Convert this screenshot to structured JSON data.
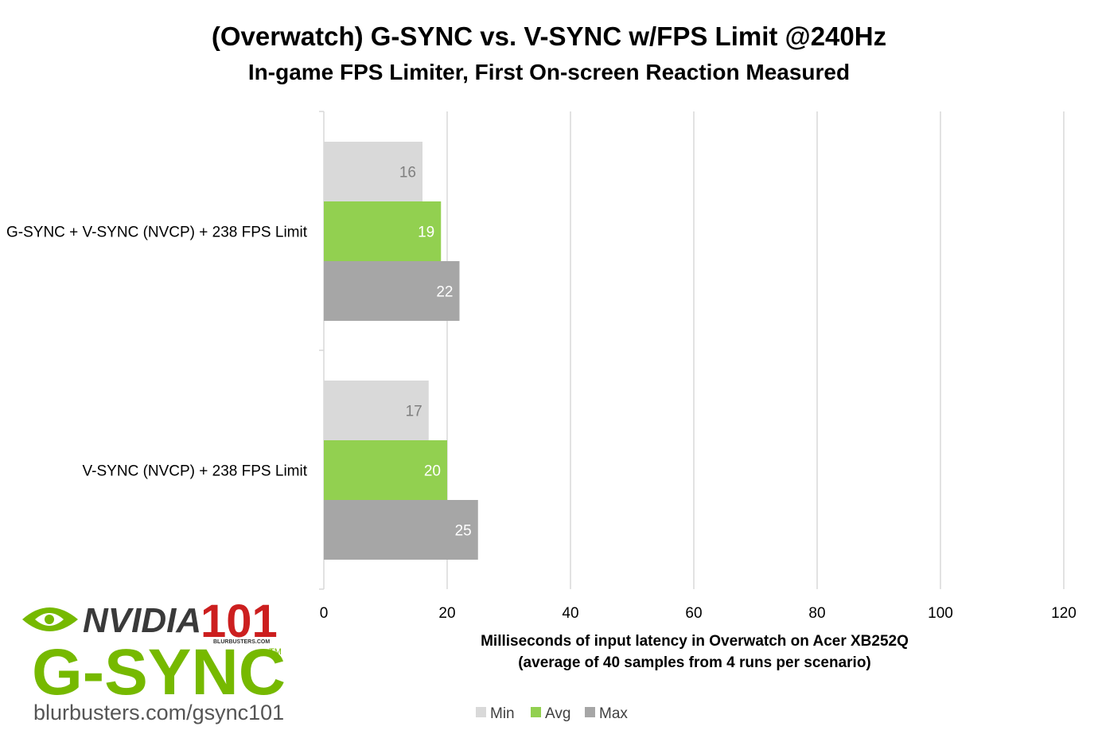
{
  "chart_data": {
    "type": "bar",
    "orientation": "horizontal",
    "title": "(Overwatch) G-SYNC vs. V-SYNC w/FPS Limit @240Hz",
    "subtitle": "In-game FPS Limiter, First On-screen Reaction Measured",
    "categories": [
      "G-SYNC + V-SYNC (NVCP) + 238 FPS Limit",
      "V-SYNC (NVCP) + 238 FPS Limit"
    ],
    "series": [
      {
        "name": "Min",
        "values": [
          16,
          17
        ],
        "color": "#d9d9d9",
        "label_color": "#7f7f7f"
      },
      {
        "name": "Avg",
        "values": [
          19,
          20
        ],
        "color": "#92d050",
        "label_color": "#ffffff"
      },
      {
        "name": "Max",
        "values": [
          22,
          25
        ],
        "color": "#a6a6a6",
        "label_color": "#ffffff"
      }
    ],
    "xlim": [
      0,
      120
    ],
    "xticks": [
      "0",
      "20",
      "40",
      "60",
      "80",
      "100",
      "120"
    ],
    "xlabel_line1": "Milliseconds of input latency in Overwatch on Acer XB252Q",
    "xlabel_line2": "(average of 40 samples from 4 runs per scenario)",
    "grid": true,
    "legend_position": "bottom"
  },
  "logo": {
    "nvidia": "NVIDIA",
    "number": "101",
    "blurbusters": "BLURBUSTERS.COM",
    "gsync": "G-SYNC",
    "tm": "TM",
    "url": "blurbusters.com/gsync101",
    "green": "#76b900"
  }
}
